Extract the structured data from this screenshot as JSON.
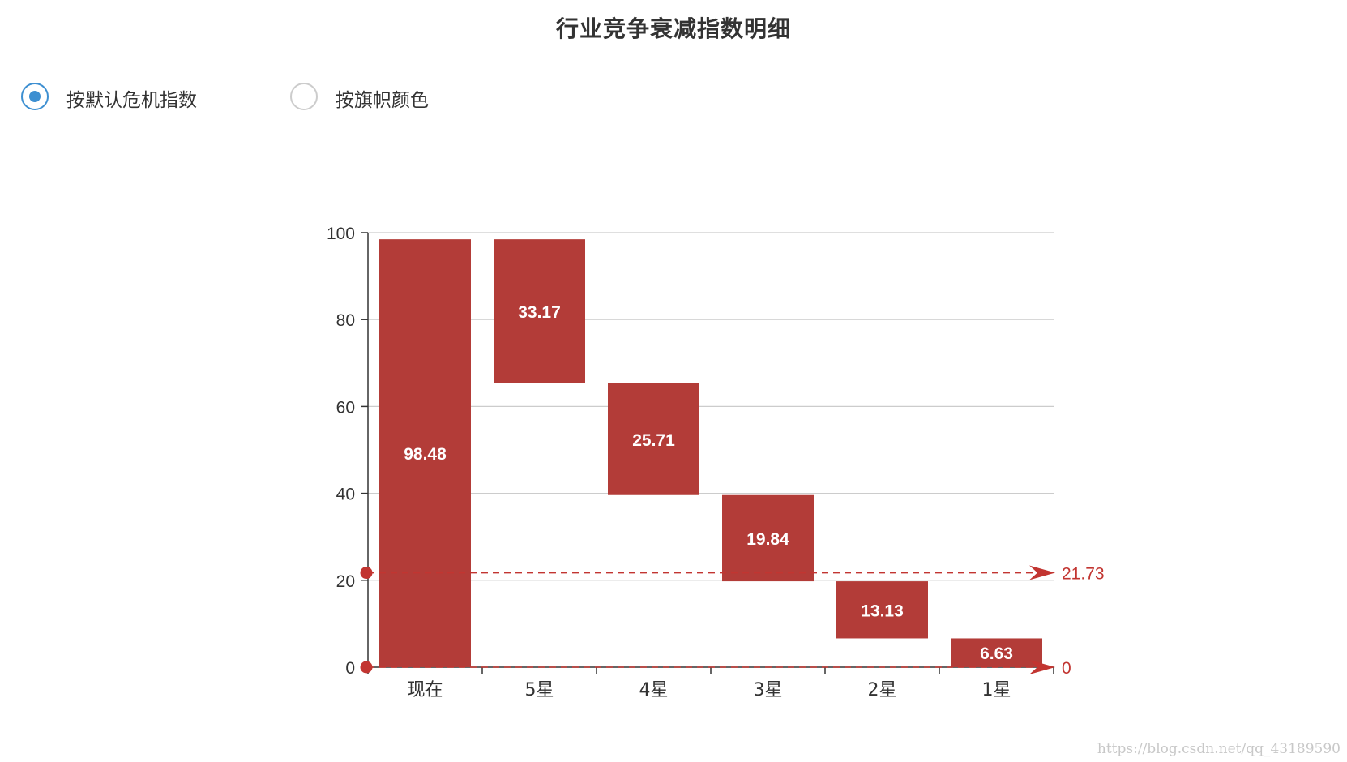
{
  "page": {
    "title": "行业竞争衰减指数明细",
    "watermark": "https://blog.csdn.net/qq_43189590"
  },
  "options": [
    {
      "label": "按默认危机指数",
      "checked": true
    },
    {
      "label": "按旗帜颜色",
      "checked": false
    }
  ],
  "chart_data": {
    "type": "bar",
    "subtype": "waterfall",
    "categories": [
      "现在",
      "5星",
      "4星",
      "3星",
      "2星",
      "1星"
    ],
    "values": [
      98.48,
      33.17,
      25.71,
      19.84,
      13.13,
      6.63
    ],
    "bars": [
      {
        "category": "现在",
        "bottom": 0,
        "top": 98.48,
        "label": "98.48"
      },
      {
        "category": "5星",
        "bottom": 65.31,
        "top": 98.48,
        "label": "33.17"
      },
      {
        "category": "4星",
        "bottom": 39.6,
        "top": 65.31,
        "label": "25.71"
      },
      {
        "category": "3星",
        "bottom": 19.76,
        "top": 39.6,
        "label": "19.84"
      },
      {
        "category": "2星",
        "bottom": 6.63,
        "top": 19.76,
        "label": "13.13"
      },
      {
        "category": "1星",
        "bottom": 0,
        "top": 6.63,
        "label": "6.63"
      }
    ],
    "ylim": [
      0,
      100
    ],
    "yticks": [
      0,
      20,
      40,
      60,
      80,
      100
    ],
    "ytick_labels": [
      "0",
      "20",
      "40",
      "60",
      "80",
      "100"
    ],
    "grid": true,
    "mark_lines": [
      {
        "value": 21.73,
        "label": "21.73"
      },
      {
        "value": 0,
        "label": "0"
      }
    ],
    "bar_color": "#b33c38",
    "mark_color": "#c23531",
    "axis_color": "#333333",
    "grid_color": "#cccccc",
    "label_color": "#ffffff"
  }
}
